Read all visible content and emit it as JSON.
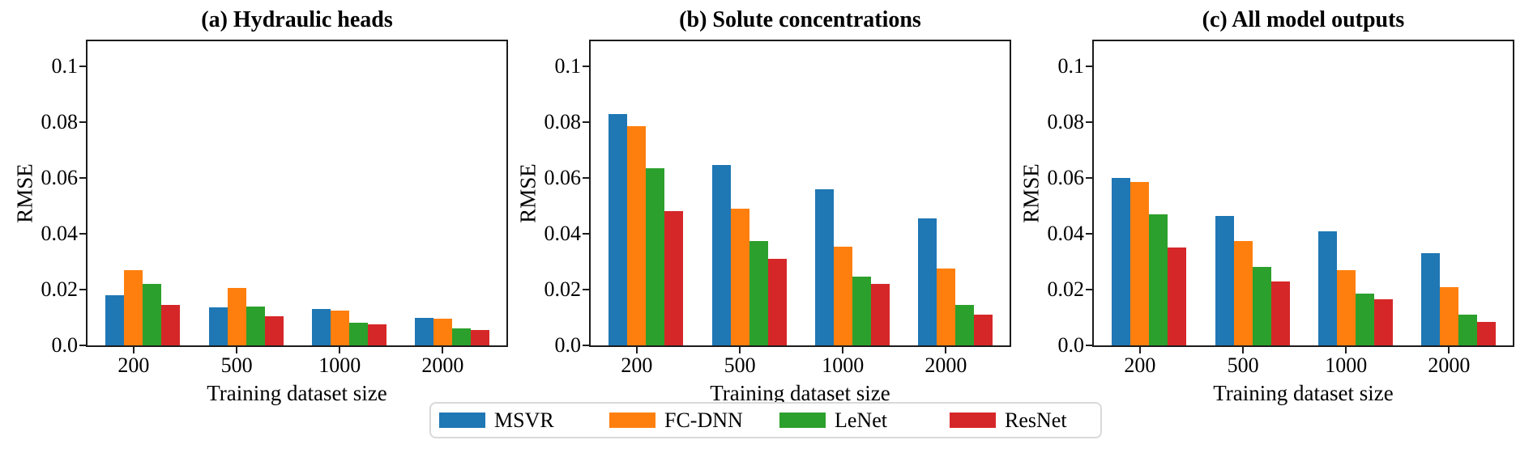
{
  "figure": {
    "background": "#ffffff",
    "axis_color": "#1c1c1c"
  },
  "legend": {
    "entries": [
      {
        "label": "MSVR",
        "color": "#1f77b4"
      },
      {
        "label": "FC-DNN",
        "color": "#ff7f0e"
      },
      {
        "label": "LeNet",
        "color": "#2ca02c"
      },
      {
        "label": "ResNet",
        "color": "#d62728"
      }
    ],
    "position": "below-figure-center"
  },
  "chart_data": [
    {
      "type": "bar",
      "title": "(a) Hydraulic heads",
      "xlabel": "Training dataset size",
      "ylabel": "RMSE",
      "categories": [
        "200",
        "500",
        "1000",
        "2000"
      ],
      "series": [
        {
          "name": "MSVR",
          "color": "#1f77b4",
          "values": [
            0.018,
            0.0135,
            0.013,
            0.01
          ]
        },
        {
          "name": "FC-DNN",
          "color": "#ff7f0e",
          "values": [
            0.027,
            0.0205,
            0.0125,
            0.0095
          ]
        },
        {
          "name": "LeNet",
          "color": "#2ca02c",
          "values": [
            0.022,
            0.014,
            0.008,
            0.006
          ]
        },
        {
          "name": "ResNet",
          "color": "#d62728",
          "values": [
            0.0145,
            0.0105,
            0.0075,
            0.0055
          ]
        }
      ],
      "ylim": [
        0,
        0.109
      ],
      "yticks": [
        0,
        0.02,
        0.04,
        0.06,
        0.08,
        0.1
      ],
      "ytick_labels": [
        "0.0",
        "0.02",
        "0.04",
        "0.06",
        "0.08",
        "0.1"
      ],
      "grid": false,
      "legend_position": "shared-below"
    },
    {
      "type": "bar",
      "title": "(b) Solute concentrations",
      "xlabel": "Training dataset size",
      "ylabel": "RMSE",
      "categories": [
        "200",
        "500",
        "1000",
        "2000"
      ],
      "series": [
        {
          "name": "MSVR",
          "color": "#1f77b4",
          "values": [
            0.083,
            0.0645,
            0.056,
            0.0455
          ]
        },
        {
          "name": "FC-DNN",
          "color": "#ff7f0e",
          "values": [
            0.0785,
            0.049,
            0.0355,
            0.0275
          ]
        },
        {
          "name": "LeNet",
          "color": "#2ca02c",
          "values": [
            0.0635,
            0.0375,
            0.0245,
            0.0145
          ]
        },
        {
          "name": "ResNet",
          "color": "#d62728",
          "values": [
            0.048,
            0.031,
            0.022,
            0.011
          ]
        }
      ],
      "ylim": [
        0,
        0.109
      ],
      "yticks": [
        0,
        0.02,
        0.04,
        0.06,
        0.08,
        0.1
      ],
      "ytick_labels": [
        "0.0",
        "0.02",
        "0.04",
        "0.06",
        "0.08",
        "0.1"
      ],
      "grid": false,
      "legend_position": "shared-below"
    },
    {
      "type": "bar",
      "title": "(c) All model outputs",
      "xlabel": "Training dataset size",
      "ylabel": "RMSE",
      "categories": [
        "200",
        "500",
        "1000",
        "2000"
      ],
      "series": [
        {
          "name": "MSVR",
          "color": "#1f77b4",
          "values": [
            0.06,
            0.0465,
            0.041,
            0.033
          ]
        },
        {
          "name": "FC-DNN",
          "color": "#ff7f0e",
          "values": [
            0.0585,
            0.0375,
            0.027,
            0.021
          ]
        },
        {
          "name": "LeNet",
          "color": "#2ca02c",
          "values": [
            0.047,
            0.028,
            0.0185,
            0.011
          ]
        },
        {
          "name": "ResNet",
          "color": "#d62728",
          "values": [
            0.035,
            0.023,
            0.0165,
            0.0085
          ]
        }
      ],
      "ylim": [
        0,
        0.109
      ],
      "yticks": [
        0,
        0.02,
        0.04,
        0.06,
        0.08,
        0.1
      ],
      "ytick_labels": [
        "0.0",
        "0.02",
        "0.04",
        "0.06",
        "0.08",
        "0.1"
      ],
      "grid": false,
      "legend_position": "shared-below"
    }
  ]
}
